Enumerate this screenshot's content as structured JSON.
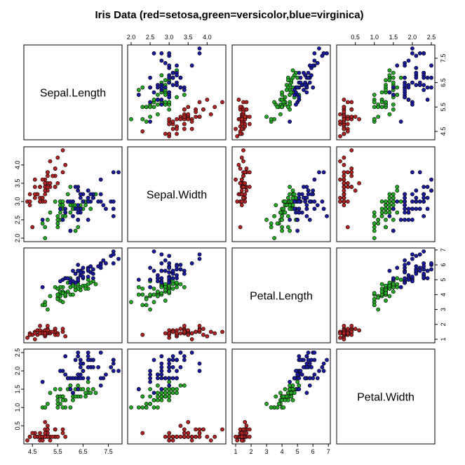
{
  "title": "Iris Data (red=setosa,green=versicolor,blue=virginica)",
  "colors": {
    "setosa": "#b22222",
    "versicolor": "#22aa22",
    "virginica": "#1a1aa0"
  },
  "chart_data": {
    "type": "scatter",
    "title": "Iris Data (red=setosa,green=versicolor,blue=virginica)",
    "variables": [
      "Sepal.Length",
      "Sepal.Width",
      "Petal.Length",
      "Petal.Width"
    ],
    "ranges": [
      [
        4.3,
        7.9
      ],
      [
        2.0,
        4.4
      ],
      [
        1.0,
        6.9
      ],
      [
        0.1,
        2.5
      ]
    ],
    "ticks": [
      [
        "4.5",
        "5.5",
        "6.5",
        "7.5"
      ],
      [
        "2.0",
        "2.5",
        "3.0",
        "3.5",
        "4.0"
      ],
      [
        "1",
        "2",
        "3",
        "4",
        "5",
        "6",
        "7"
      ],
      [
        "0.5",
        "1.0",
        "1.5",
        "2.0",
        "2.5"
      ]
    ],
    "grid": false,
    "legend": "none",
    "series": [
      {
        "colorKey": "setosa",
        "points": [
          [
            5.1,
            3.5,
            1.4,
            0.2
          ],
          [
            4.9,
            3.0,
            1.4,
            0.2
          ],
          [
            4.7,
            3.2,
            1.3,
            0.2
          ],
          [
            4.6,
            3.1,
            1.5,
            0.2
          ],
          [
            5.0,
            3.6,
            1.4,
            0.2
          ],
          [
            5.4,
            3.9,
            1.7,
            0.4
          ],
          [
            4.6,
            3.4,
            1.4,
            0.3
          ],
          [
            5.0,
            3.4,
            1.5,
            0.2
          ],
          [
            4.4,
            2.9,
            1.4,
            0.2
          ],
          [
            4.9,
            3.1,
            1.5,
            0.1
          ],
          [
            5.4,
            3.7,
            1.5,
            0.2
          ],
          [
            4.8,
            3.4,
            1.6,
            0.2
          ],
          [
            4.8,
            3.0,
            1.4,
            0.1
          ],
          [
            4.3,
            3.0,
            1.1,
            0.1
          ],
          [
            5.8,
            4.0,
            1.2,
            0.2
          ],
          [
            5.7,
            4.4,
            1.5,
            0.4
          ],
          [
            5.4,
            3.9,
            1.3,
            0.4
          ],
          [
            5.1,
            3.5,
            1.4,
            0.3
          ],
          [
            5.7,
            3.8,
            1.7,
            0.3
          ],
          [
            5.1,
            3.8,
            1.5,
            0.3
          ],
          [
            5.4,
            3.4,
            1.7,
            0.2
          ],
          [
            5.1,
            3.7,
            1.5,
            0.4
          ],
          [
            4.6,
            3.6,
            1.0,
            0.2
          ],
          [
            5.1,
            3.3,
            1.7,
            0.5
          ],
          [
            4.8,
            3.4,
            1.9,
            0.2
          ],
          [
            5.0,
            3.0,
            1.6,
            0.2
          ],
          [
            5.0,
            3.4,
            1.6,
            0.4
          ],
          [
            5.2,
            3.5,
            1.5,
            0.2
          ],
          [
            5.2,
            3.4,
            1.4,
            0.2
          ],
          [
            4.7,
            3.2,
            1.6,
            0.2
          ],
          [
            4.8,
            3.1,
            1.6,
            0.2
          ],
          [
            5.4,
            3.4,
            1.5,
            0.4
          ],
          [
            5.2,
            4.1,
            1.5,
            0.1
          ],
          [
            5.5,
            4.2,
            1.4,
            0.2
          ],
          [
            4.9,
            3.1,
            1.5,
            0.2
          ],
          [
            5.0,
            3.2,
            1.2,
            0.2
          ],
          [
            5.5,
            3.5,
            1.3,
            0.2
          ],
          [
            4.9,
            3.6,
            1.4,
            0.1
          ],
          [
            4.4,
            3.0,
            1.3,
            0.2
          ],
          [
            5.1,
            3.4,
            1.5,
            0.2
          ],
          [
            5.0,
            3.5,
            1.3,
            0.3
          ],
          [
            4.5,
            2.3,
            1.3,
            0.3
          ],
          [
            4.4,
            3.2,
            1.3,
            0.2
          ],
          [
            5.0,
            3.5,
            1.6,
            0.6
          ],
          [
            5.1,
            3.8,
            1.9,
            0.4
          ],
          [
            4.8,
            3.0,
            1.4,
            0.3
          ],
          [
            5.1,
            3.8,
            1.6,
            0.2
          ],
          [
            4.6,
            3.2,
            1.4,
            0.2
          ],
          [
            5.3,
            3.7,
            1.5,
            0.2
          ],
          [
            5.0,
            3.3,
            1.4,
            0.2
          ]
        ]
      },
      {
        "colorKey": "versicolor",
        "points": [
          [
            7.0,
            3.2,
            4.7,
            1.4
          ],
          [
            6.4,
            3.2,
            4.5,
            1.5
          ],
          [
            6.9,
            3.1,
            4.9,
            1.5
          ],
          [
            5.5,
            2.3,
            4.0,
            1.3
          ],
          [
            6.5,
            2.8,
            4.6,
            1.5
          ],
          [
            5.7,
            2.8,
            4.5,
            1.3
          ],
          [
            6.3,
            3.3,
            4.7,
            1.6
          ],
          [
            4.9,
            2.4,
            3.3,
            1.0
          ],
          [
            6.6,
            2.9,
            4.6,
            1.3
          ],
          [
            5.2,
            2.7,
            3.9,
            1.4
          ],
          [
            5.0,
            2.0,
            3.5,
            1.0
          ],
          [
            5.9,
            3.0,
            4.2,
            1.5
          ],
          [
            6.0,
            2.2,
            4.0,
            1.0
          ],
          [
            6.1,
            2.9,
            4.7,
            1.4
          ],
          [
            5.6,
            2.9,
            3.6,
            1.3
          ],
          [
            6.7,
            3.1,
            4.4,
            1.4
          ],
          [
            5.6,
            3.0,
            4.5,
            1.5
          ],
          [
            5.8,
            2.7,
            4.1,
            1.0
          ],
          [
            6.2,
            2.2,
            4.5,
            1.5
          ],
          [
            5.6,
            2.5,
            3.9,
            1.1
          ],
          [
            5.9,
            3.2,
            4.8,
            1.8
          ],
          [
            6.1,
            2.8,
            4.0,
            1.3
          ],
          [
            6.3,
            2.5,
            4.9,
            1.5
          ],
          [
            6.1,
            2.8,
            4.7,
            1.2
          ],
          [
            6.4,
            2.9,
            4.3,
            1.3
          ],
          [
            6.6,
            3.0,
            4.4,
            1.4
          ],
          [
            6.8,
            2.8,
            4.8,
            1.4
          ],
          [
            6.7,
            3.0,
            5.0,
            1.7
          ],
          [
            6.0,
            2.9,
            4.5,
            1.5
          ],
          [
            5.7,
            2.6,
            3.5,
            1.0
          ],
          [
            5.5,
            2.4,
            3.8,
            1.1
          ],
          [
            5.5,
            2.4,
            3.7,
            1.0
          ],
          [
            5.8,
            2.7,
            3.9,
            1.2
          ],
          [
            6.0,
            2.7,
            5.1,
            1.6
          ],
          [
            5.4,
            3.0,
            4.5,
            1.5
          ],
          [
            6.0,
            3.4,
            4.5,
            1.6
          ],
          [
            6.7,
            3.1,
            4.7,
            1.5
          ],
          [
            6.3,
            2.3,
            4.4,
            1.3
          ],
          [
            5.6,
            3.0,
            4.1,
            1.3
          ],
          [
            5.5,
            2.5,
            4.0,
            1.3
          ],
          [
            5.5,
            2.6,
            4.4,
            1.2
          ],
          [
            6.1,
            3.0,
            4.6,
            1.4
          ],
          [
            5.8,
            2.6,
            4.0,
            1.2
          ],
          [
            5.0,
            2.3,
            3.3,
            1.0
          ],
          [
            5.6,
            2.7,
            4.2,
            1.3
          ],
          [
            5.7,
            3.0,
            4.2,
            1.2
          ],
          [
            5.7,
            2.9,
            4.2,
            1.3
          ],
          [
            6.2,
            2.9,
            4.3,
            1.3
          ],
          [
            5.1,
            2.5,
            3.0,
            1.1
          ],
          [
            5.7,
            2.8,
            4.1,
            1.3
          ]
        ]
      },
      {
        "colorKey": "virginica",
        "points": [
          [
            6.3,
            3.3,
            6.0,
            2.5
          ],
          [
            5.8,
            2.7,
            5.1,
            1.9
          ],
          [
            7.1,
            3.0,
            5.9,
            2.1
          ],
          [
            6.3,
            2.9,
            5.6,
            1.8
          ],
          [
            6.5,
            3.0,
            5.8,
            2.2
          ],
          [
            7.6,
            3.0,
            6.6,
            2.1
          ],
          [
            4.9,
            2.5,
            4.5,
            1.7
          ],
          [
            7.3,
            2.9,
            6.3,
            1.8
          ],
          [
            6.7,
            2.5,
            5.8,
            1.8
          ],
          [
            7.2,
            3.6,
            6.1,
            2.5
          ],
          [
            6.5,
            3.2,
            5.1,
            2.0
          ],
          [
            6.4,
            2.7,
            5.3,
            1.9
          ],
          [
            6.8,
            3.0,
            5.5,
            2.1
          ],
          [
            5.7,
            2.5,
            5.0,
            2.0
          ],
          [
            5.8,
            2.8,
            5.1,
            2.4
          ],
          [
            6.4,
            3.2,
            5.3,
            2.3
          ],
          [
            6.5,
            3.0,
            5.5,
            1.8
          ],
          [
            7.7,
            3.8,
            6.7,
            2.2
          ],
          [
            7.7,
            2.6,
            6.9,
            2.3
          ],
          [
            6.0,
            2.2,
            5.0,
            1.5
          ],
          [
            6.9,
            3.2,
            5.7,
            2.3
          ],
          [
            5.6,
            2.8,
            4.9,
            2.0
          ],
          [
            7.7,
            2.8,
            6.7,
            2.0
          ],
          [
            6.3,
            2.7,
            4.9,
            1.8
          ],
          [
            6.7,
            3.3,
            5.7,
            2.1
          ],
          [
            7.2,
            3.2,
            6.0,
            1.8
          ],
          [
            6.2,
            2.8,
            4.8,
            1.8
          ],
          [
            6.1,
            3.0,
            4.9,
            1.8
          ],
          [
            6.4,
            2.8,
            5.6,
            2.1
          ],
          [
            7.2,
            3.0,
            5.8,
            1.6
          ],
          [
            7.4,
            2.8,
            6.1,
            1.9
          ],
          [
            7.9,
            3.8,
            6.4,
            2.0
          ],
          [
            6.4,
            2.8,
            5.6,
            2.2
          ],
          [
            6.3,
            2.8,
            5.1,
            1.5
          ],
          [
            6.1,
            2.6,
            5.6,
            1.4
          ],
          [
            7.7,
            3.0,
            6.1,
            2.3
          ],
          [
            6.3,
            3.4,
            5.6,
            2.4
          ],
          [
            6.4,
            3.1,
            5.5,
            1.8
          ],
          [
            6.0,
            3.0,
            4.8,
            1.8
          ],
          [
            6.9,
            3.1,
            5.4,
            2.1
          ],
          [
            6.7,
            3.1,
            5.6,
            2.4
          ],
          [
            6.9,
            3.1,
            5.1,
            2.3
          ],
          [
            5.8,
            2.7,
            5.1,
            1.9
          ],
          [
            6.8,
            3.2,
            5.9,
            2.3
          ],
          [
            6.7,
            3.3,
            5.7,
            2.5
          ],
          [
            6.7,
            3.0,
            5.2,
            2.3
          ],
          [
            6.3,
            2.5,
            5.0,
            1.9
          ],
          [
            6.5,
            3.0,
            5.2,
            2.0
          ],
          [
            6.2,
            3.4,
            5.4,
            2.3
          ],
          [
            5.9,
            3.0,
            5.1,
            1.8
          ]
        ]
      }
    ]
  }
}
